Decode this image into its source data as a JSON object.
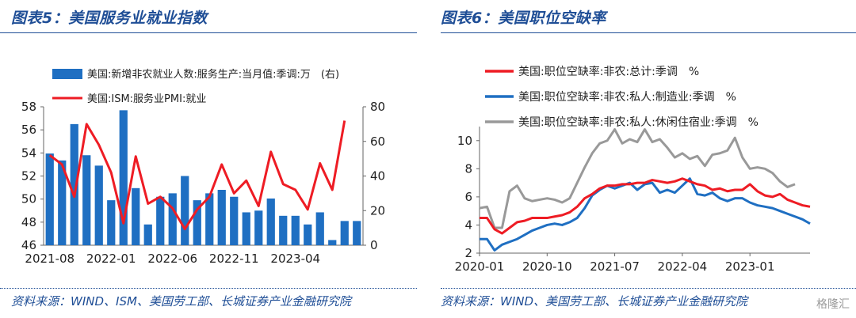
{
  "left": {
    "title": "图表5：美国服务业就业指数",
    "source": "资料来源：WIND、ISM、美国劳工部、长城证券产业金融研究院"
  },
  "right": {
    "title": "图表6：美国职位空缺率",
    "source": "资料来源：WIND、美国劳工部、长城证券产业金融研究院"
  },
  "watermark": "格隆汇",
  "chart_data": [
    {
      "type": "bar",
      "x_ticks": [
        "2021-08",
        "2022-01",
        "2022-06",
        "2022-11",
        "2023-04"
      ],
      "y_left": {
        "lim": [
          46,
          58
        ],
        "ticks": [
          "46",
          "48",
          "50",
          "52",
          "54",
          "56",
          "58"
        ]
      },
      "y_right": {
        "lim": [
          0,
          80
        ],
        "ticks": [
          "0",
          "20",
          "40",
          "60",
          "80"
        ]
      },
      "series": [
        {
          "name": "美国:新增非农就业人数:服务生产:当月值:季调:万　(右)",
          "color": "#1f6fc2",
          "kind": "bar",
          "axis": "right",
          "values": [
            53,
            49,
            70,
            52,
            46,
            26,
            78,
            33,
            12,
            28,
            30,
            40,
            26,
            30,
            32,
            28,
            19,
            20,
            27,
            17,
            17,
            12,
            19,
            3,
            14,
            14
          ]
        },
        {
          "name": "美国:ISM:服务业PMI:就业",
          "color": "#ee1c24",
          "kind": "line",
          "axis": "left",
          "values": [
            53.8,
            53.0,
            50.2,
            56.5,
            54.7,
            52.3,
            47.9,
            53.7,
            49.6,
            50.2,
            49.2,
            47.4,
            49.1,
            50.2,
            53.0,
            50.5,
            51.6,
            49.4,
            54.1,
            51.3,
            50.8,
            49.1,
            53.1,
            50.8,
            56.8
          ]
        }
      ]
    },
    {
      "type": "line",
      "x_ticks": [
        "2020-01",
        "2020-10",
        "2021-07",
        "2022-04",
        "2023-01"
      ],
      "y": {
        "lim": [
          2,
          11
        ],
        "ticks": [
          "2",
          "4",
          "6",
          "8",
          "10"
        ]
      },
      "series": [
        {
          "name": "美国:职位空缺率:非农:总计:季调　%",
          "color": "#ee1c24",
          "values": [
            4.5,
            4.5,
            3.7,
            3.4,
            3.8,
            4.2,
            4.3,
            4.5,
            4.5,
            4.5,
            4.6,
            4.7,
            4.9,
            5.3,
            5.9,
            6.2,
            6.6,
            6.8,
            6.8,
            6.9,
            6.9,
            7.0,
            7.0,
            7.2,
            7.1,
            7.0,
            7.1,
            7.3,
            7.1,
            6.9,
            6.8,
            6.5,
            6.6,
            6.4,
            6.5,
            6.5,
            6.9,
            6.4,
            6.1,
            6.0,
            6.2,
            5.8,
            5.6,
            5.4,
            5.3
          ]
        },
        {
          "name": "美国:职位空缺率:非农:私人:制造业:季调　%",
          "color": "#1f6fc2",
          "values": [
            3.0,
            3.0,
            2.2,
            2.6,
            2.8,
            3.0,
            3.3,
            3.6,
            3.8,
            4.0,
            4.1,
            4.0,
            4.2,
            4.5,
            5.2,
            6.1,
            6.5,
            6.8,
            6.6,
            6.8,
            7.0,
            6.5,
            6.9,
            7.0,
            6.3,
            6.5,
            6.3,
            6.8,
            7.3,
            6.2,
            6.1,
            6.3,
            5.9,
            5.7,
            5.9,
            5.9,
            5.6,
            5.4,
            5.3,
            5.2,
            5.0,
            4.8,
            4.6,
            4.4,
            4.1
          ]
        },
        {
          "name": "美国:职位空缺率:非农:私人:休闲住宿业:季调　%",
          "color": "#999999",
          "values": [
            5.2,
            5.3,
            3.8,
            3.8,
            6.4,
            6.8,
            5.9,
            5.7,
            5.8,
            5.9,
            5.8,
            5.6,
            5.9,
            7.0,
            8.1,
            9.1,
            9.8,
            10.0,
            10.8,
            9.8,
            10.1,
            9.9,
            10.8,
            9.9,
            10.1,
            9.5,
            8.8,
            9.1,
            8.7,
            8.9,
            8.2,
            9.0,
            9.1,
            9.3,
            10.2,
            8.8,
            8.0,
            8.1,
            8.0,
            7.7,
            7.1,
            6.7,
            6.9
          ]
        }
      ]
    }
  ]
}
